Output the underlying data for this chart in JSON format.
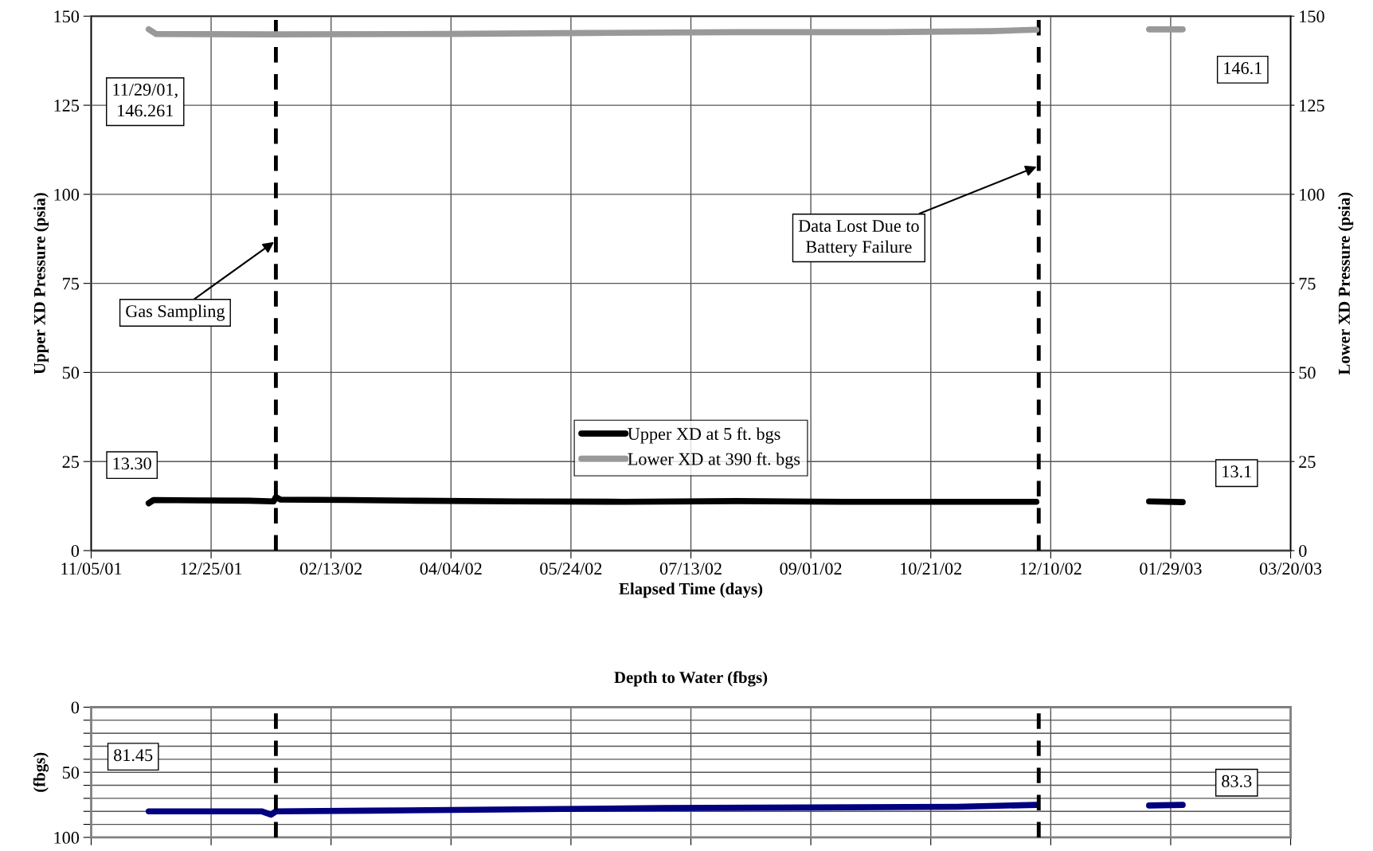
{
  "chart_data": [
    {
      "type": "line",
      "xlabel": "Elapsed Time (days)",
      "ylabel": "Upper XD Pressure (psia)",
      "y2label": "Lower XD Pressure (psia)",
      "series": [
        {
          "name": "Upper XD at 5 ft. bgs",
          "color": "#000000",
          "x": [
            "2001-11-29",
            "2001-12-01",
            "2001-12-20",
            "2002-01-10",
            "2002-01-20",
            "2002-01-21",
            "2002-01-23",
            "2002-02-20",
            "2002-03-20",
            "2002-05-01",
            "2002-06-15",
            "2002-08-01",
            "2002-09-15",
            "2002-11-01",
            "2002-12-04",
            "2002-12-20",
            "2003-01-20",
            "2003-02-03"
          ],
          "values": [
            13.3,
            14.2,
            14.1,
            14.0,
            13.8,
            15.0,
            14.3,
            14.2,
            14.0,
            13.8,
            13.7,
            13.9,
            13.7,
            13.7,
            13.7,
            null,
            13.8,
            13.6
          ]
        },
        {
          "name": "Lower XD at 390 ft. bgs",
          "color": "#999999",
          "axis": "y2",
          "x": [
            "2001-11-29",
            "2001-12-02",
            "2002-01-20",
            "2002-04-01",
            "2002-06-01",
            "2002-08-01",
            "2002-10-01",
            "2002-11-15",
            "2002-12-04",
            "2002-12-20",
            "2003-01-20",
            "2003-02-03"
          ],
          "values": [
            146.3,
            145.0,
            144.9,
            145.0,
            145.3,
            145.5,
            145.5,
            145.8,
            146.2,
            null,
            146.3,
            146.3
          ]
        }
      ],
      "xlim": [
        "2001-11-05",
        "2003-03-20"
      ],
      "xticks": [
        {
          "value": "2001-11-05",
          "label": "11/05/01"
        },
        {
          "value": "2001-12-25",
          "label": "12/25/01"
        },
        {
          "value": "2002-02-13",
          "label": "02/13/02"
        },
        {
          "value": "2002-04-04",
          "label": "04/04/02"
        },
        {
          "value": "2002-05-24",
          "label": "05/24/02"
        },
        {
          "value": "2002-07-13",
          "label": "07/13/02"
        },
        {
          "value": "2002-09-01",
          "label": "09/01/02"
        },
        {
          "value": "2002-10-21",
          "label": "10/21/02"
        },
        {
          "value": "2002-12-10",
          "label": "12/10/02"
        },
        {
          "value": "2003-01-29",
          "label": "01/29/03"
        },
        {
          "value": "2003-03-20",
          "label": "03/20/03"
        }
      ],
      "ylim": [
        0,
        150
      ],
      "yticks": [
        0,
        25,
        50,
        75,
        100,
        125,
        150
      ],
      "y2lim": [
        0,
        150
      ],
      "y2ticks": [
        0,
        25,
        50,
        75,
        100,
        125,
        150
      ],
      "ref_lines": [
        {
          "axis": "x",
          "value": "2002-01-21",
          "color": "#000000",
          "line_style": "dashed"
        },
        {
          "axis": "x",
          "value": "2002-12-05",
          "color": "#000000",
          "line_style": "dashed"
        }
      ],
      "annotations": [
        "11/29/01,\n146.261",
        "13.30",
        "146.1",
        "13.1",
        "Gas Sampling",
        "Data Lost Due to\nBattery Failure"
      ],
      "grid": true,
      "legend": "bottom",
      "marker": "none",
      "line_style": "solid"
    },
    {
      "type": "line",
      "title": "Depth to Water (fbgs)",
      "ylabel": "(fbgs)",
      "series": [
        {
          "color": "#000080",
          "x": [
            "2001-11-29",
            "2001-12-01",
            "2002-01-15",
            "2002-01-19",
            "2002-01-21",
            "2002-03-01",
            "2002-05-01",
            "2002-07-01",
            "2002-09-01",
            "2002-11-01",
            "2002-12-04",
            "2002-12-20",
            "2003-01-20",
            "2003-02-03"
          ],
          "values": [
            80,
            80,
            80,
            82.5,
            80,
            79.5,
            78.5,
            77.5,
            77,
            76.5,
            75,
            null,
            75.5,
            75
          ]
        }
      ],
      "xlim": [
        "2001-11-05",
        "2003-03-20"
      ],
      "xticks": [
        "2001-11-05",
        "2001-12-25",
        "2002-02-13",
        "2002-04-04",
        "2002-05-24",
        "2002-07-13",
        "2002-09-01",
        "2002-10-21",
        "2002-12-10",
        "2003-01-29",
        "2003-03-20"
      ],
      "ylim": [
        100,
        0
      ],
      "yticks": [
        0,
        {
          "value": 10,
          "label": null
        },
        {
          "value": 20,
          "label": null
        },
        {
          "value": 30,
          "label": null
        },
        {
          "value": 40,
          "label": null
        },
        50,
        {
          "value": 60,
          "label": null
        },
        {
          "value": 70,
          "label": null
        },
        {
          "value": 80,
          "label": null
        },
        {
          "value": 90,
          "label": null
        },
        100
      ],
      "ref_lines": [
        {
          "axis": "x",
          "value": "2002-01-21",
          "color": "#000000",
          "line_style": "dashed"
        },
        {
          "axis": "x",
          "value": "2002-12-05",
          "color": "#000000",
          "line_style": "dashed"
        }
      ],
      "annotations": [
        "81.45",
        "83.3"
      ],
      "grid": true,
      "tick_labels": "y",
      "marker": "none",
      "line_style": "solid"
    }
  ]
}
